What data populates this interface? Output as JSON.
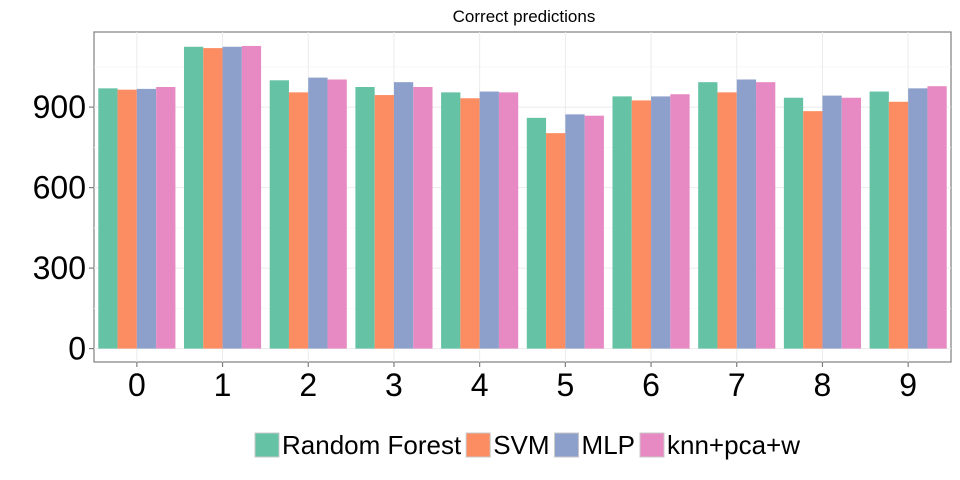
{
  "chart_data": {
    "type": "bar",
    "title": "Correct predictions",
    "xlabel": "",
    "ylabel": "",
    "categories": [
      "0",
      "1",
      "2",
      "3",
      "4",
      "5",
      "6",
      "7",
      "8",
      "9"
    ],
    "series": [
      {
        "name": "Random Forest",
        "color": "#66c2a5",
        "values": [
          970,
          1125,
          1000,
          975,
          955,
          860,
          940,
          993,
          935,
          958
        ]
      },
      {
        "name": "SVM",
        "color": "#fc8d62",
        "values": [
          965,
          1120,
          955,
          945,
          933,
          803,
          925,
          955,
          885,
          920
        ]
      },
      {
        "name": "MLP",
        "color": "#8da0cb",
        "values": [
          968,
          1125,
          1010,
          993,
          958,
          873,
          940,
          1003,
          943,
          970
        ]
      },
      {
        "name": "knn+pca+w",
        "color": "#e78ac3",
        "values": [
          975,
          1128,
          1003,
          975,
          955,
          868,
          948,
          993,
          935,
          978
        ]
      }
    ],
    "ylim": [
      -50,
      1180
    ],
    "yticks": [
      0,
      300,
      600,
      900
    ],
    "grid": true,
    "legend_position": "bottom"
  }
}
